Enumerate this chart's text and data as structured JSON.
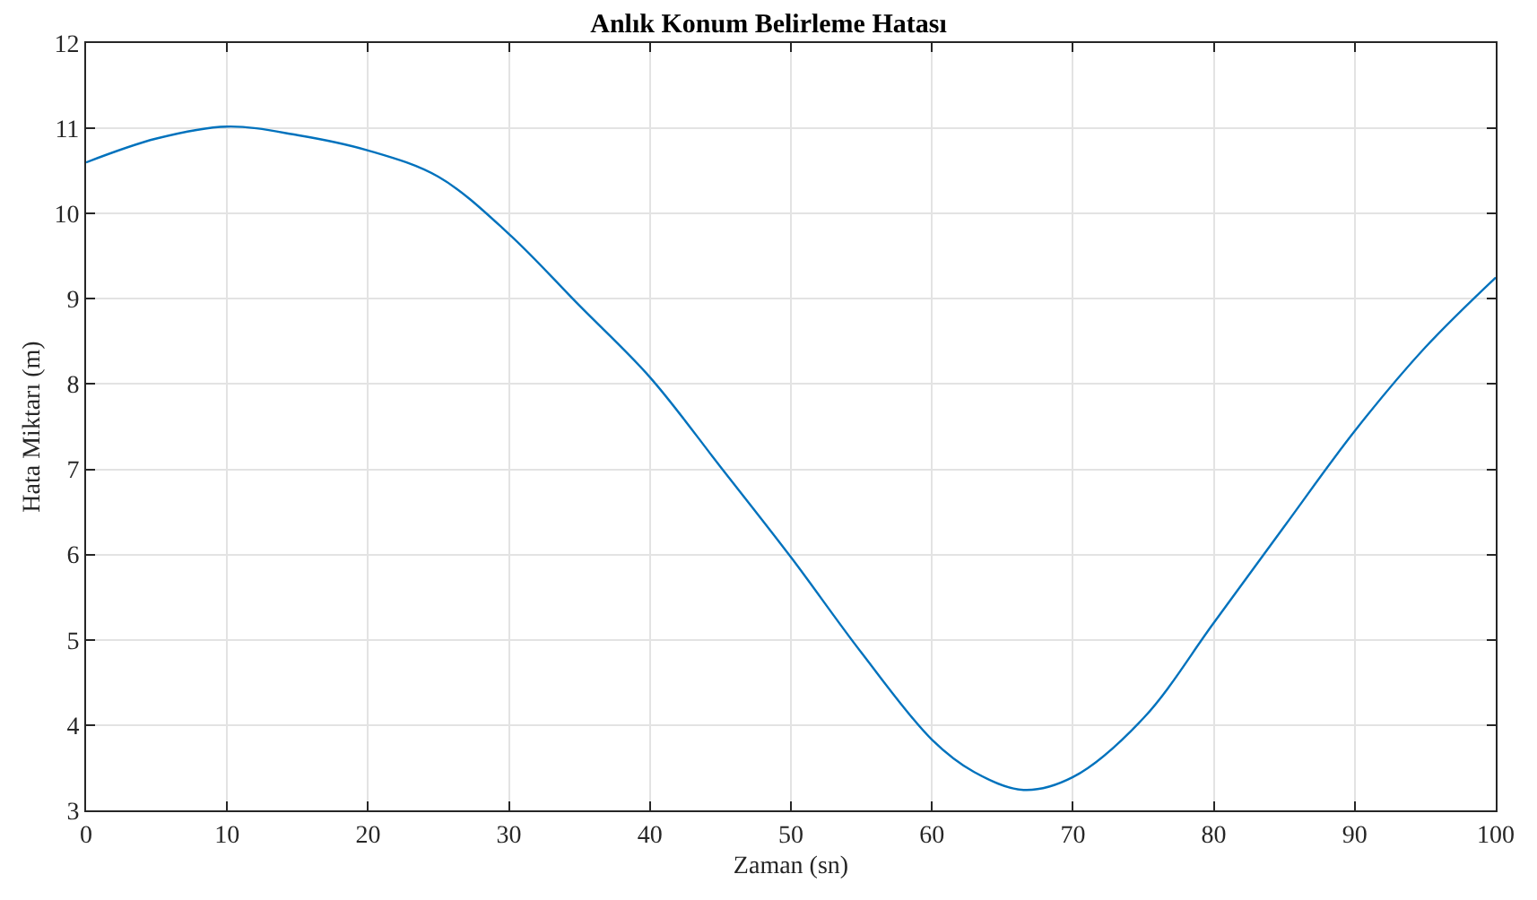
{
  "chart_data": {
    "type": "line",
    "title": "Anlık Konum Belirleme Hatası",
    "xlabel": "Zaman (sn)",
    "ylabel": "Hata Miktarı (m)",
    "x": [
      0,
      5,
      10,
      15,
      20,
      25,
      30,
      35,
      40,
      45,
      50,
      55,
      60,
      63,
      66.5,
      70,
      75,
      80,
      85,
      90,
      95,
      100
    ],
    "series": [
      {
        "color": "#0072bd",
        "values": [
          10.6,
          10.88,
          11.02,
          10.92,
          10.74,
          10.43,
          9.76,
          8.92,
          8.08,
          7.03,
          5.97,
          4.85,
          3.83,
          3.45,
          3.24,
          3.39,
          4.08,
          5.2,
          6.33,
          7.45,
          8.43,
          9.25
        ]
      }
    ],
    "xlim": [
      0,
      100
    ],
    "xticks": [
      0,
      10,
      20,
      30,
      40,
      50,
      60,
      70,
      80,
      90,
      100
    ],
    "ylim": [
      3,
      12
    ],
    "yticks": [
      3,
      4,
      5,
      6,
      7,
      8,
      9,
      10,
      11,
      12
    ],
    "grid": true,
    "marker": "none",
    "line_style": "solid"
  }
}
